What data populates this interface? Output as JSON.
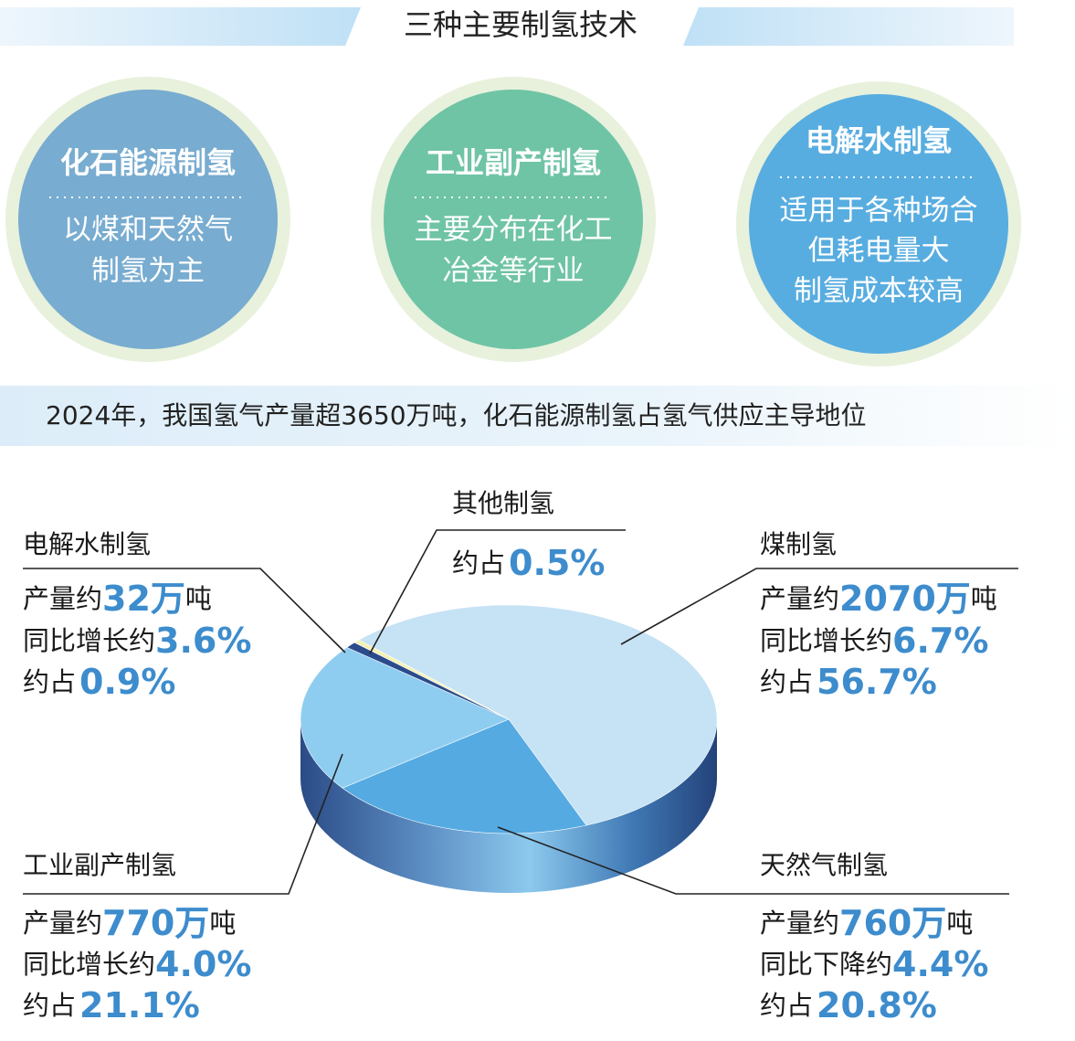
{
  "header": {
    "title": "三种主要制氢技术"
  },
  "methods": [
    {
      "name": "化石能源制氢",
      "lines": [
        "以煤和天然气",
        "制氢为主"
      ]
    },
    {
      "name": "工业副产制氢",
      "lines": [
        "主要分布在化工",
        "冶金等行业"
      ]
    },
    {
      "name": "电解水制氢",
      "lines": [
        "适用于各种场合",
        "但耗电量大",
        "制氢成本较高"
      ]
    }
  ],
  "subtitle": "2024年，我国氢气产量超3650万吨，化石能源制氢占氢气供应主导地位",
  "chart_data": {
    "type": "pie",
    "categories": [
      "煤制氢",
      "天然气制氢",
      "工业副产制氢",
      "电解水制氢",
      "其他制氢"
    ],
    "values": [
      56.7,
      20.8,
      21.1,
      0.9,
      0.5
    ],
    "value_labels": [
      "56.7%",
      "20.8%",
      "21.1%",
      "0.9%",
      "0.5%"
    ],
    "colors": [
      "#c6e2f5",
      "#55aae2",
      "#8fcdf0",
      "#2c4b8c",
      "#f4f1b4"
    ],
    "share_prefix": "约占",
    "details": [
      [
        {
          "prefix": "产量约",
          "highlight": "2070万",
          "suffix": "吨"
        },
        {
          "prefix": "同比增长约",
          "highlight": "6.7%"
        }
      ],
      [
        {
          "prefix": "产量约",
          "highlight": "760万",
          "suffix": "吨"
        },
        {
          "prefix": "同比下降约",
          "highlight": "4.4%"
        }
      ],
      [
        {
          "prefix": "产量约",
          "highlight": "770万",
          "suffix": "吨"
        },
        {
          "prefix": "同比增长约",
          "highlight": "4.0%"
        }
      ],
      [
        {
          "prefix": "产量约",
          "highlight": "32万",
          "suffix": "吨"
        },
        {
          "prefix": "同比增长约",
          "highlight": "3.6%"
        }
      ],
      []
    ]
  }
}
